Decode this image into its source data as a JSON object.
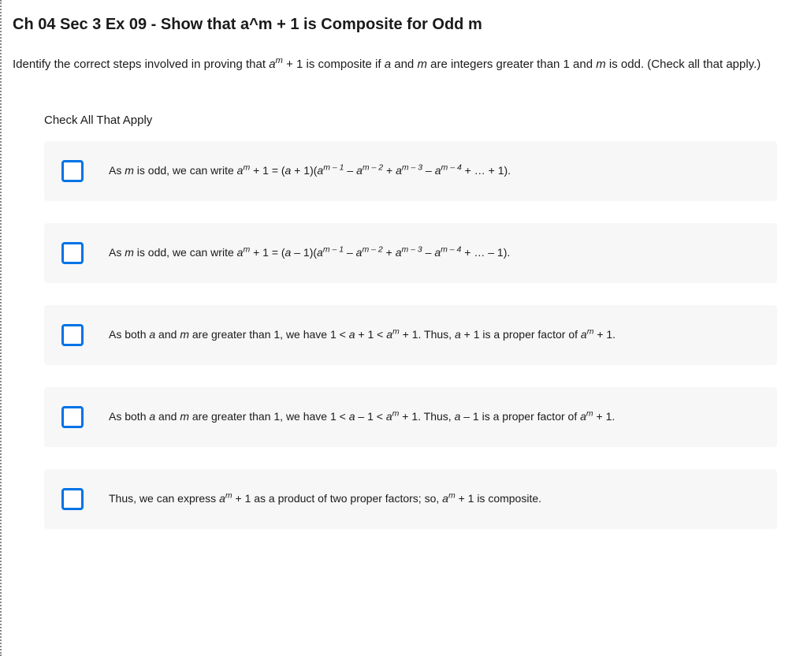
{
  "title": "Ch 04 Sec 3 Ex 09 - Show that a^m + 1 is Composite for Odd m",
  "prompt": {
    "before_math": "Identify the correct steps involved in proving that ",
    "math_base": "a",
    "math_exp": "m",
    "after_math_1": " + 1 is composite if ",
    "var_a": "a",
    "and_text": " and ",
    "var_m": "m",
    "after_vars": " are integers greater than 1 and ",
    "var_m2": "m",
    "tail": " is odd. (Check all that apply.)"
  },
  "section_label": "Check All That Apply",
  "colors": {
    "checkbox_border": "#0073e6",
    "option_bg": "#f7f7f7",
    "text": "#1a1a1a",
    "page_bg": "#ffffff",
    "dotted_border": "#888888"
  },
  "options": [
    {
      "parts": {
        "p1": "As ",
        "mvar": "m",
        "p2": " is odd, we can write ",
        "eq_lhs_base": "a",
        "eq_lhs_exp": "m",
        "eq_lhs_tail": " + 1 = (",
        "a1": "a",
        "plus1": " + 1)(",
        "t1b": "a",
        "t1e": "m – 1",
        "s1": " – ",
        "t2b": "a",
        "t2e": "m – 2",
        "s2": " + ",
        "t3b": "a",
        "t3e": "m – 3",
        "s3": " – ",
        "t4b": "a",
        "t4e": "m – 4",
        "s4": " + … + 1)."
      }
    },
    {
      "parts": {
        "p1": "As ",
        "mvar": "m",
        "p2": " is odd, we can write ",
        "eq_lhs_base": "a",
        "eq_lhs_exp": "m",
        "eq_lhs_tail": " + 1 = (",
        "a1": "a",
        "plus1": " – 1)(",
        "t1b": "a",
        "t1e": "m – 1",
        "s1": " – ",
        "t2b": "a",
        "t2e": "m – 2",
        "s2": " + ",
        "t3b": "a",
        "t3e": "m – 3",
        "s3": " – ",
        "t4b": "a",
        "t4e": "m – 4",
        "s4": " + … – 1)."
      }
    },
    {
      "parts": {
        "p1": "As both ",
        "avar": "a",
        "p2": " and ",
        "mvar": "m",
        "p3": " are greater than 1, we have 1 < ",
        "a2": "a",
        "p4": " + 1 < ",
        "t1b": "a",
        "t1e": "m",
        "p5": " + 1. Thus, ",
        "a3": "a",
        "p6": " + 1 is a proper factor of ",
        "t2b": "a",
        "t2e": "m",
        "p7": " + 1."
      }
    },
    {
      "parts": {
        "p1": "As both ",
        "avar": "a",
        "p2": " and ",
        "mvar": "m",
        "p3": " are greater than 1, we have 1 < ",
        "a2": "a",
        "p4": " – 1 < ",
        "t1b": "a",
        "t1e": "m",
        "p5": " + 1. Thus, ",
        "a3": "a",
        "p6": " – 1 is a proper factor of ",
        "t2b": "a",
        "t2e": "m",
        "p7": " + 1."
      }
    },
    {
      "parts": {
        "p1": "Thus, we can express ",
        "t1b": "a",
        "t1e": "m",
        "p2": " + 1 as a product of two proper factors; so, ",
        "t2b": "a",
        "t2e": "m",
        "p3": " + 1 is composite."
      }
    }
  ]
}
